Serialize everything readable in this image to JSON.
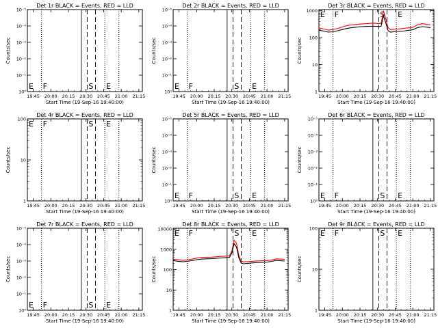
{
  "x_ticks": [
    "19:45",
    "20:00",
    "20:15",
    "20:30",
    "20:45",
    "21:00",
    "21:15"
  ],
  "xlabel": "Start Time (19-Sep-16 19:40:00)",
  "ylabel": "Counts/sec",
  "colors": {
    "events": "#000000",
    "lld": "#ff0000",
    "axes": "#000000"
  },
  "time_markers": [
    {
      "label": "E",
      "minutes": 0,
      "style": "dotted"
    },
    {
      "label": "F",
      "minutes": 12,
      "style": "dotted"
    },
    {
      "label": "",
      "minutes": 46,
      "style": "solid"
    },
    {
      "label": "S",
      "minutes": 51,
      "style": "dashed"
    },
    {
      "label": "",
      "minutes": 58,
      "style": "dashed"
    },
    {
      "label": "E",
      "minutes": 66,
      "style": "dotted"
    },
    {
      "label": "",
      "minutes": 78,
      "style": "dotted"
    }
  ],
  "chart_data": [
    {
      "type": "line",
      "title": "Det 1r BLACK = Events, RED = LLD",
      "xlabel": "Start Time (19-Sep-16 19:40:00)",
      "ylabel": "Counts/sec",
      "xlim": [
        0,
        98
      ],
      "ylim": [
        0.9,
        1.1
      ],
      "yscale": "log",
      "y_tick_labels": [
        "10⁰",
        "10⁻¹",
        "10⁻²",
        "10⁻³",
        "10⁻⁴",
        "10⁻⁵"
      ],
      "series": []
    },
    {
      "type": "line",
      "title": "Det 2r BLACK = Events, RED = LLD",
      "xlabel": "Start Time (19-Sep-16 19:40:00)",
      "ylabel": "Counts/sec",
      "xlim": [
        0,
        98
      ],
      "ylim": [
        0.9,
        1.1
      ],
      "yscale": "log",
      "y_tick_labels": [
        "10⁰",
        "10⁻¹",
        "10⁻²",
        "10⁻³",
        "10⁻⁴",
        "10⁻⁵"
      ],
      "series": []
    },
    {
      "type": "line",
      "title": "Det 3r BLACK = Events, RED = LLD",
      "xlabel": "Start Time (19-Sep-16 19:40:00)",
      "ylabel": "Counts/sec",
      "xlim": [
        0,
        98
      ],
      "ylim": [
        1,
        1100
      ],
      "yscale": "log",
      "y_tick_labels": [
        "1",
        "10",
        "100",
        "1000"
      ],
      "series": [
        {
          "color": "#ff0000",
          "x": [
            0,
            4,
            8,
            12,
            16,
            20,
            24,
            28,
            32,
            36,
            40,
            44,
            48,
            51,
            53,
            55,
            57,
            59,
            61,
            64,
            68,
            72,
            76,
            80,
            84,
            88,
            92,
            95
          ],
          "y": [
            230,
            210,
            190,
            200,
            220,
            250,
            280,
            300,
            310,
            320,
            330,
            340,
            340,
            330,
            340,
            1000,
            500,
            230,
            200,
            205,
            210,
            220,
            230,
            240,
            300,
            330,
            310,
            300
          ]
        },
        {
          "color": "#000000",
          "x": [
            0,
            4,
            8,
            12,
            16,
            20,
            24,
            28,
            32,
            36,
            40,
            44,
            48,
            51,
            53,
            55,
            57,
            59,
            61,
            64,
            68,
            72,
            76,
            80,
            84,
            88,
            92,
            95
          ],
          "y": [
            190,
            175,
            160,
            165,
            180,
            200,
            220,
            235,
            245,
            255,
            260,
            265,
            265,
            260,
            265,
            650,
            350,
            180,
            160,
            165,
            170,
            175,
            185,
            195,
            235,
            255,
            245,
            235
          ]
        }
      ]
    },
    {
      "type": "line",
      "title": "Det 4r BLACK = Events, RED = LLD",
      "xlabel": "Start Time (19-Sep-16 19:40:00)",
      "ylabel": "Counts/sec",
      "xlim": [
        0,
        98
      ],
      "ylim": [
        1,
        100
      ],
      "yscale": "log",
      "y_tick_labels": [
        "1",
        "10",
        "100"
      ],
      "series": []
    },
    {
      "type": "line",
      "title": "Det 5r BLACK = Events, RED = LLD",
      "xlabel": "Start Time (19-Sep-16 19:40:00)",
      "ylabel": "Counts/sec",
      "xlim": [
        0,
        98
      ],
      "ylim": [
        0.9,
        1.1
      ],
      "yscale": "log",
      "y_tick_labels": [
        "10⁰",
        "10⁻¹",
        "10⁻²",
        "10⁻³",
        "10⁻⁴",
        "10⁻⁵"
      ],
      "series": []
    },
    {
      "type": "line",
      "title": "Det 6r BLACK = Events, RED = LLD",
      "xlabel": "Start Time (19-Sep-16 19:40:00)",
      "ylabel": "Counts/sec",
      "xlim": [
        0,
        98
      ],
      "ylim": [
        0.9,
        1.1
      ],
      "yscale": "log",
      "y_tick_labels": [
        "10⁰",
        "10⁻¹",
        "10⁻²",
        "10⁻³",
        "10⁻⁴",
        "10⁻⁵"
      ],
      "series": []
    },
    {
      "type": "line",
      "title": "Det 7r BLACK = Events, RED = LLD",
      "xlabel": "Start Time (19-Sep-16 19:40:00)",
      "ylabel": "Counts/sec",
      "xlim": [
        0,
        98
      ],
      "ylim": [
        0.9,
        1.1
      ],
      "yscale": "log",
      "y_tick_labels": [
        "10⁰",
        "10⁻¹",
        "10⁻²",
        "10⁻³",
        "10⁻⁴",
        "10⁻⁵"
      ],
      "series": []
    },
    {
      "type": "line",
      "title": "Det 8r BLACK = Events, RED = LLD",
      "xlabel": "Start Time (19-Sep-16 19:40:00)",
      "ylabel": "Counts/sec",
      "xlim": [
        0,
        98
      ],
      "ylim": [
        1,
        11000
      ],
      "yscale": "log",
      "y_tick_labels": [
        "1",
        "10",
        "100",
        "1000",
        "10000"
      ],
      "series": [
        {
          "color": "#ff0000",
          "x": [
            0,
            4,
            8,
            12,
            16,
            20,
            24,
            28,
            32,
            36,
            40,
            44,
            48,
            50,
            52,
            54,
            56,
            58,
            60,
            64,
            68,
            72,
            76,
            80,
            84,
            88,
            92,
            95
          ],
          "y": [
            330,
            310,
            290,
            300,
            330,
            370,
            400,
            410,
            410,
            430,
            450,
            460,
            480,
            800,
            2800,
            2000,
            500,
            260,
            240,
            250,
            260,
            270,
            275,
            280,
            300,
            340,
            330,
            320
          ]
        },
        {
          "color": "#000000",
          "x": [
            0,
            4,
            8,
            12,
            16,
            20,
            24,
            28,
            32,
            36,
            40,
            44,
            48,
            50,
            52,
            54,
            56,
            58,
            60,
            64,
            68,
            72,
            76,
            80,
            84,
            88,
            92,
            95
          ],
          "y": [
            280,
            260,
            245,
            255,
            280,
            310,
            330,
            340,
            345,
            360,
            375,
            385,
            400,
            650,
            1900,
            1300,
            380,
            210,
            195,
            205,
            215,
            225,
            230,
            235,
            255,
            285,
            275,
            265
          ]
        }
      ]
    },
    {
      "type": "line",
      "title": "Det 9r BLACK = Events, RED = LLD",
      "xlabel": "Start Time (19-Sep-16 19:40:00)",
      "ylabel": "Counts/sec",
      "xlim": [
        0,
        98
      ],
      "ylim": [
        1,
        100
      ],
      "yscale": "log",
      "y_tick_labels": [
        "1",
        "10",
        "100"
      ],
      "series": []
    }
  ]
}
